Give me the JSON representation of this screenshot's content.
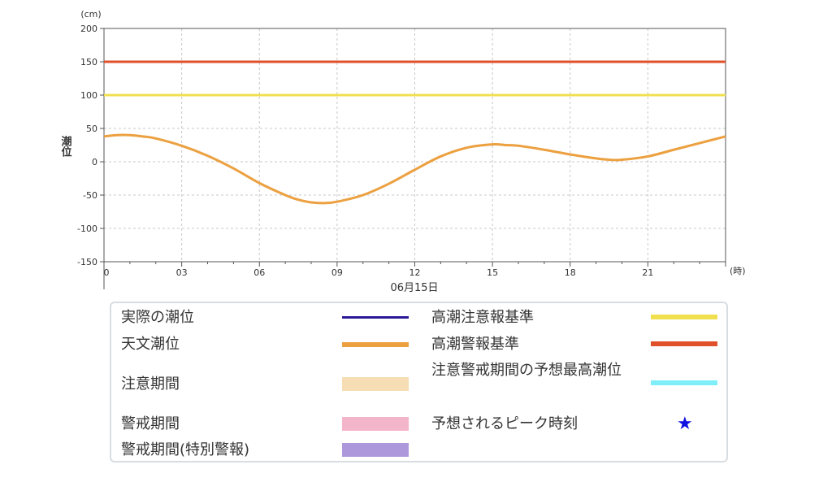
{
  "chart_data": {
    "type": "line",
    "y_unit": "(cm)",
    "x_unit": "(時)",
    "ylabel": "潮位",
    "date_label": "06月15日",
    "ylim": [
      -150,
      200
    ],
    "xlim": [
      0,
      24
    ],
    "y_ticks": [
      "200",
      "150",
      "100",
      "50",
      "0",
      "-50",
      "-100",
      "-150"
    ],
    "y_tick_values": [
      200,
      150,
      100,
      50,
      0,
      -50,
      -100,
      -150
    ],
    "x_ticks": [
      "0",
      "03",
      "06",
      "09",
      "12",
      "15",
      "18",
      "21"
    ],
    "x_tick_values": [
      0,
      3,
      6,
      9,
      12,
      15,
      18,
      21
    ],
    "grid": true,
    "thresholds": [
      {
        "name": "高潮警報基準",
        "value": 150,
        "color": "#e0502a"
      },
      {
        "name": "高潮注意報基準",
        "value": 100,
        "color": "#f0e050"
      }
    ],
    "series": [
      {
        "name": "天文潮位",
        "color": "#eca040",
        "x": [
          0,
          0.5,
          1,
          1.5,
          2,
          3,
          4,
          5,
          6,
          7,
          7.5,
          8,
          8.5,
          9,
          10,
          11,
          12,
          13,
          14,
          15,
          15.5,
          16,
          17,
          18,
          19,
          19.5,
          20,
          21,
          22,
          23,
          24
        ],
        "values": [
          38,
          40,
          40,
          38,
          35,
          24,
          9,
          -10,
          -32,
          -50,
          -57,
          -61,
          -62,
          -60,
          -50,
          -33,
          -12,
          8,
          21,
          26,
          25,
          24,
          18,
          11,
          5,
          3,
          3,
          8,
          18,
          28,
          38
        ]
      }
    ]
  },
  "legend": {
    "actual_tide": {
      "label": "実際の潮位",
      "color": "#2a1a9a"
    },
    "astro_tide": {
      "label": "天文潮位",
      "color": "#eca040"
    },
    "caution_period": {
      "label": "注意期間",
      "color": "#f7ddb4"
    },
    "warning_period": {
      "label": "警戒期間",
      "color": "#f3b5c9"
    },
    "special_period": {
      "label": "警戒期間(特別警報)",
      "color": "#ae98dc"
    },
    "advisory_level": {
      "label": "高潮注意報基準",
      "color": "#f0e050"
    },
    "warning_level": {
      "label": "高潮警報基準",
      "color": "#e0502a"
    },
    "forecast_max": {
      "label": "注意警戒期間の予想最高潮位",
      "color": "#7eeef8"
    },
    "peak_time": {
      "label": "予想されるピーク時刻",
      "color": "#1010e0",
      "icon": "star-icon"
    }
  }
}
